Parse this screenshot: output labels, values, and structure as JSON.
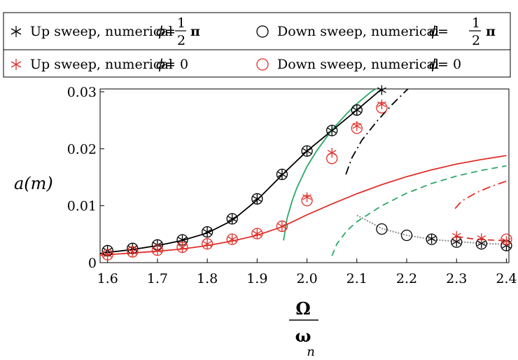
{
  "colors": {
    "black": "#000000",
    "red": "#e0302a",
    "green": "#2ea86a",
    "gray": "#8c8c8c"
  },
  "legend": {
    "items": [
      {
        "marker": "star",
        "color": "#000000",
        "text": "Up sweep, numerical",
        "phi_label": "ϕ",
        "phi_value": "= ½ π",
        "num": "1",
        "den": "2",
        "pi": "π"
      },
      {
        "marker": "circle",
        "color": "#000000",
        "text": "Down sweep, numerical",
        "phi_label": "ϕ",
        "num": "1",
        "den": "2",
        "pi": "π"
      },
      {
        "marker": "star",
        "color": "#e0302a",
        "text": "Up sweep, numerical",
        "phi_label": "ϕ",
        "phi_value": "= 0"
      },
      {
        "marker": "circle",
        "color": "#e0302a",
        "text": "Down sweep, numerical",
        "phi_label": "ϕ",
        "phi_value": "= 0"
      }
    ]
  },
  "chart_data": {
    "type": "line",
    "xlabel_num": "Ω",
    "xlabel_den": "ω",
    "xlabel_sub": "n",
    "ylabel": "a(m)",
    "xlim": [
      1.585,
      2.405
    ],
    "ylim": [
      0,
      0.0305
    ],
    "xticks": [
      "1.6",
      "1.7",
      "1.8",
      "1.9",
      "2.0",
      "2.1",
      "2.2",
      "2.3",
      "2.4"
    ],
    "yticks": [
      "0",
      "0.01",
      "0.02",
      "0.03"
    ],
    "series": [
      {
        "style": "solid",
        "color": "#000000",
        "x": [
          1.585,
          1.6,
          1.65,
          1.7,
          1.75,
          1.8,
          1.85,
          1.9,
          1.95,
          2.0,
          2.05,
          2.1,
          2.15
        ],
        "y": [
          0.0016,
          0.0018,
          0.0023,
          0.003,
          0.0039,
          0.0052,
          0.0074,
          0.011,
          0.0154,
          0.0196,
          0.0232,
          0.0268,
          0.0305
        ]
      },
      {
        "style": "solid",
        "color": "#e0302a",
        "x": [
          1.585,
          1.6,
          1.65,
          1.7,
          1.75,
          1.8,
          1.85,
          1.9,
          1.95,
          2.0,
          2.05,
          2.1,
          2.15,
          2.2,
          2.25,
          2.3,
          2.35,
          2.4
        ],
        "y": [
          0.0013,
          0.0014,
          0.0017,
          0.002,
          0.0024,
          0.003,
          0.0038,
          0.0048,
          0.0063,
          0.0084,
          0.0103,
          0.0121,
          0.0137,
          0.0151,
          0.0163,
          0.0173,
          0.0181,
          0.0188
        ]
      },
      {
        "style": "solid",
        "color": "#2ea86a",
        "x": [
          1.953,
          1.96,
          1.97,
          1.98,
          2.0,
          2.02,
          2.05,
          2.08,
          2.1,
          2.13,
          2.16,
          2.17
        ],
        "y": [
          0.0039,
          0.0078,
          0.0108,
          0.0132,
          0.0169,
          0.0197,
          0.0233,
          0.0262,
          0.0279,
          0.0301,
          0.0316,
          0.0322
        ]
      },
      {
        "style": "dashed",
        "color": "#2ea86a",
        "x": [
          2.05,
          2.06,
          2.08,
          2.1,
          2.15,
          2.2,
          2.25,
          2.3,
          2.35,
          2.4
        ],
        "y": [
          0.0012,
          0.0033,
          0.0056,
          0.0072,
          0.01,
          0.0122,
          0.0139,
          0.0152,
          0.0162,
          0.017
        ]
      },
      {
        "style": "dashdot",
        "color": "#000000",
        "x": [
          2.078,
          2.09,
          2.11,
          2.14,
          2.17,
          2.2,
          2.22
        ],
        "y": [
          0.0155,
          0.0184,
          0.0215,
          0.0248,
          0.0277,
          0.0303,
          0.0318
        ]
      },
      {
        "style": "dashdot",
        "color": "#e0302a",
        "x": [
          2.297,
          2.31,
          2.34,
          2.37,
          2.4
        ],
        "y": [
          0.0095,
          0.0108,
          0.0123,
          0.0134,
          0.0143
        ]
      },
      {
        "style": "dotted",
        "color": "#8c8c8c",
        "x": [
          2.1,
          2.12,
          2.15,
          2.2,
          2.25,
          2.3,
          2.35,
          2.4
        ],
        "y": [
          0.0083,
          0.0074,
          0.006,
          0.0048,
          0.0041,
          0.0037,
          0.0034,
          0.0032
        ]
      },
      {
        "style": "dashed",
        "color": "#e0302a",
        "x": [
          2.3,
          2.33,
          2.36,
          2.39,
          2.4
        ],
        "y": [
          0.0046,
          0.0042,
          0.004,
          0.0039,
          0.0039
        ]
      }
    ],
    "markers": [
      {
        "marker": "star",
        "color": "#000000",
        "x": [
          1.6,
          1.65,
          1.7,
          1.75,
          1.8,
          1.85,
          1.9,
          1.95,
          2.0,
          2.05,
          2.1,
          2.15,
          2.25,
          2.3,
          2.35,
          2.4
        ],
        "y": [
          0.0021,
          0.0025,
          0.0031,
          0.004,
          0.0054,
          0.0077,
          0.0112,
          0.0155,
          0.0196,
          0.0232,
          0.0268,
          0.0303,
          0.0042,
          0.0037,
          0.0034,
          0.003
        ]
      },
      {
        "marker": "circle",
        "color": "#000000",
        "x": [
          1.6,
          1.65,
          1.7,
          1.75,
          1.8,
          1.85,
          1.9,
          1.95,
          2.0,
          2.05,
          2.1,
          2.15,
          2.2,
          2.25,
          2.3,
          2.35,
          2.4
        ],
        "y": [
          0.0021,
          0.0025,
          0.0031,
          0.004,
          0.0054,
          0.0077,
          0.0112,
          0.0155,
          0.0196,
          0.0232,
          0.0268,
          0.0059,
          0.0048,
          0.0041,
          0.0036,
          0.0033,
          0.003
        ]
      },
      {
        "marker": "star",
        "color": "#e0302a",
        "x": [
          1.6,
          1.65,
          1.7,
          1.75,
          1.8,
          1.85,
          1.9,
          1.95,
          2.0,
          2.05,
          2.1,
          2.15,
          2.3,
          2.35,
          2.4
        ],
        "y": [
          0.0014,
          0.0019,
          0.0022,
          0.0027,
          0.0033,
          0.0041,
          0.0051,
          0.0064,
          0.0115,
          0.0193,
          0.024,
          0.0278,
          0.0047,
          0.0043,
          0.0038
        ]
      },
      {
        "marker": "circle",
        "color": "#e0302a",
        "x": [
          1.6,
          1.65,
          1.7,
          1.75,
          1.8,
          1.85,
          1.9,
          1.95,
          2.0,
          2.05,
          2.1,
          2.15,
          2.4
        ],
        "y": [
          0.0014,
          0.0019,
          0.0022,
          0.0027,
          0.0033,
          0.0041,
          0.0051,
          0.0064,
          0.0109,
          0.0183,
          0.0236,
          0.0272,
          0.0041
        ]
      }
    ]
  }
}
